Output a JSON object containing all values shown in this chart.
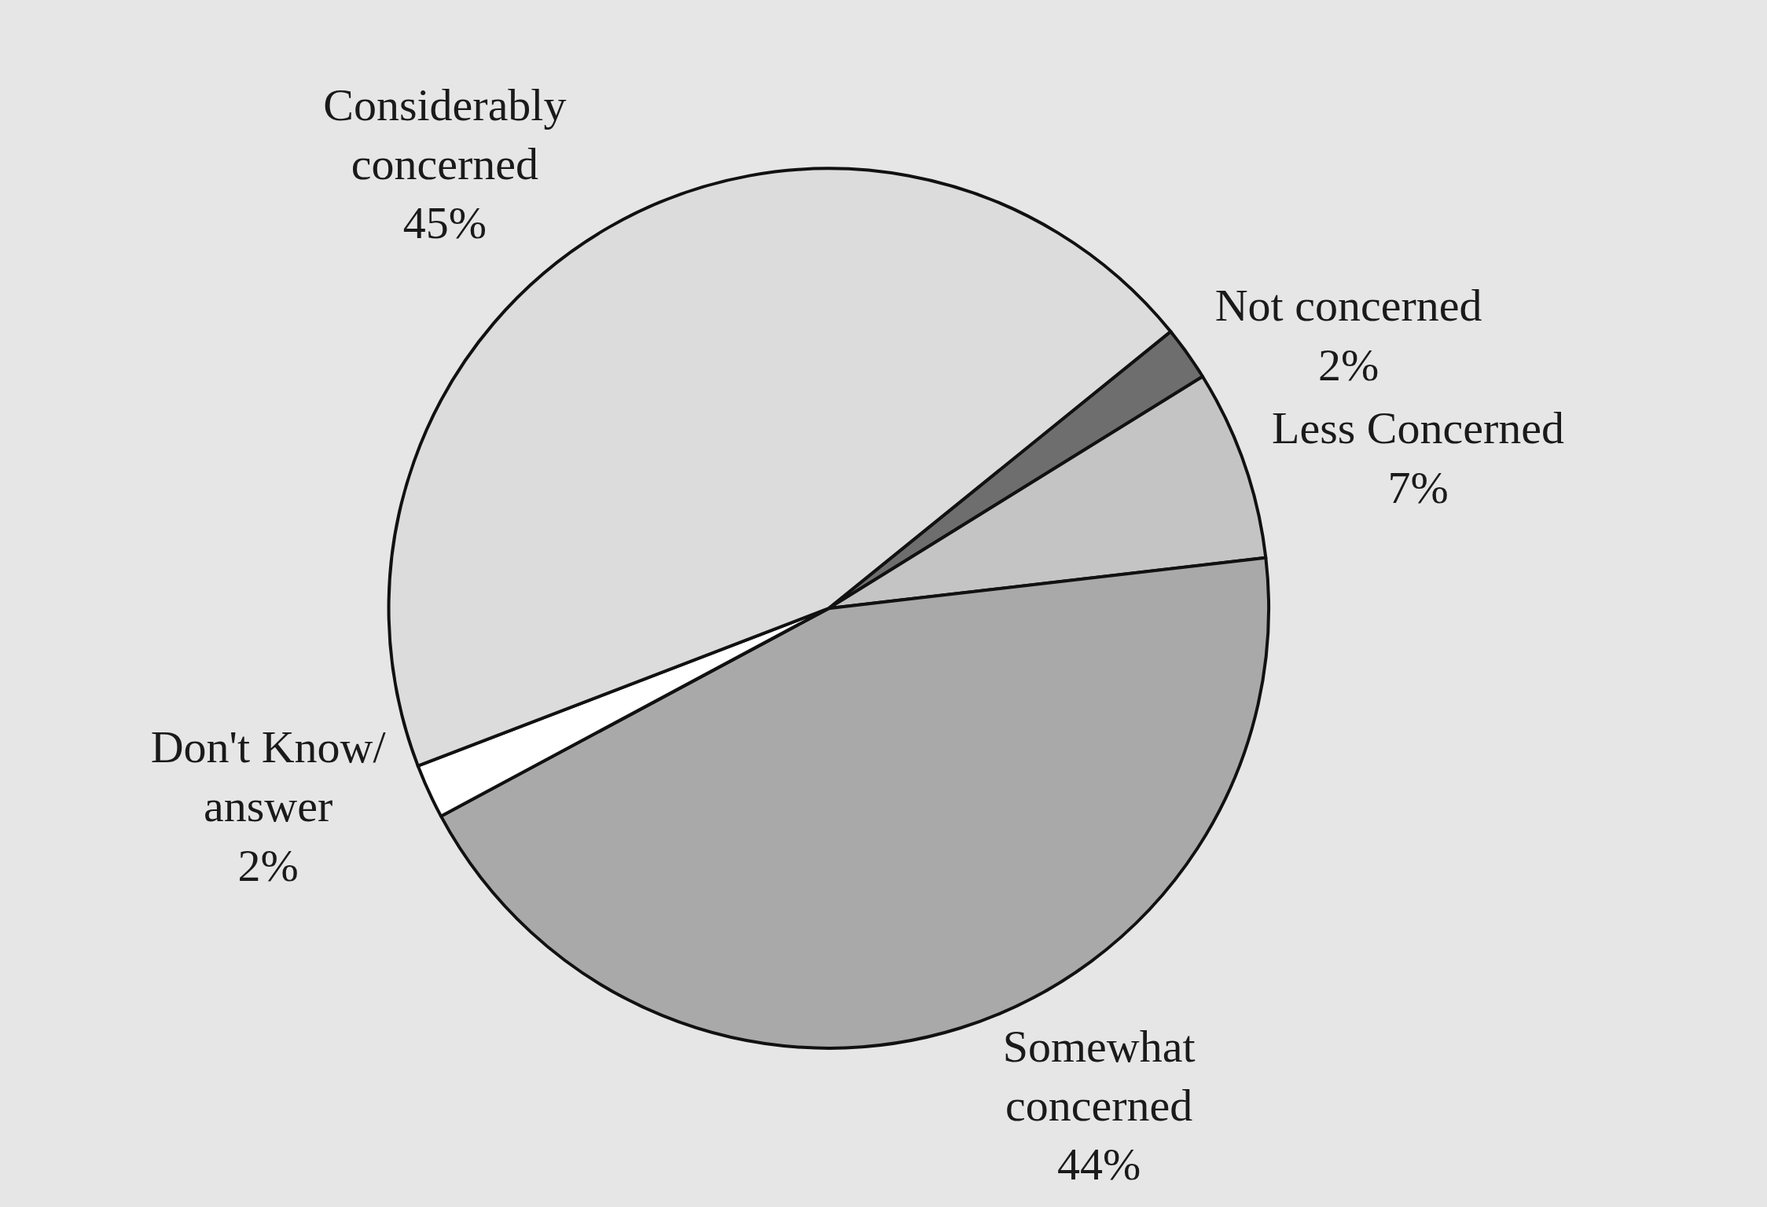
{
  "chart_data": {
    "type": "pie",
    "categories": [
      "Not concerned",
      "Less Concerned",
      "Somewhat concerned",
      "Don't Know/ answer",
      "Considerably concerned"
    ],
    "values": [
      2,
      7,
      44,
      2,
      45
    ],
    "value_labels": [
      "2%",
      "7%",
      "44%",
      "2%",
      "45%"
    ],
    "colors": [
      "#6e6e6e",
      "#c4c4c4",
      "#a9a9a9",
      "#ffffff",
      "#dcdcdc"
    ],
    "legend": false
  }
}
